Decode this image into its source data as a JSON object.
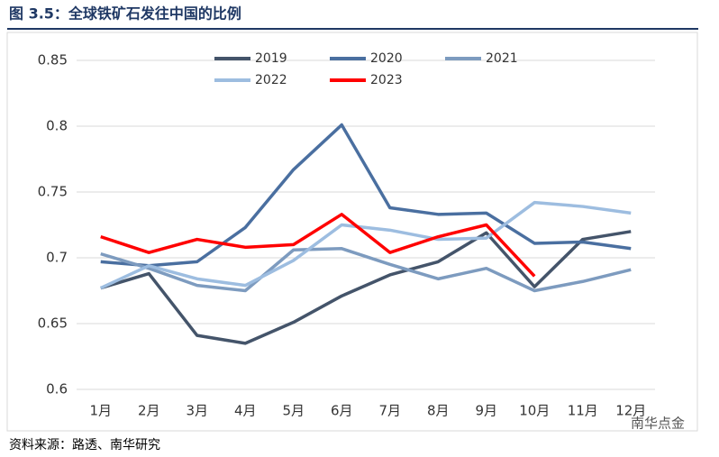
{
  "title": "图 3.5：全球铁矿石发往中国的比例",
  "source": "资料来源：路透、南华研究",
  "watermark": "南华点金",
  "chart_data": {
    "type": "line",
    "categories": [
      "1月",
      "2月",
      "3月",
      "4月",
      "5月",
      "6月",
      "7月",
      "8月",
      "9月",
      "10月",
      "11月",
      "12月"
    ],
    "series": [
      {
        "name": "2019",
        "color": "#44546a",
        "values": [
          0.677,
          0.688,
          0.641,
          0.635,
          0.651,
          0.671,
          0.687,
          0.697,
          0.719,
          0.678,
          0.714,
          0.72
        ]
      },
      {
        "name": "2020",
        "color": "#4a6fa0",
        "values": [
          0.697,
          0.694,
          0.697,
          0.723,
          0.767,
          0.801,
          0.738,
          0.733,
          0.734,
          0.711,
          0.712,
          0.707
        ]
      },
      {
        "name": "2021",
        "color": "#7d9bbf",
        "values": [
          0.703,
          0.692,
          0.679,
          0.675,
          0.706,
          0.707,
          0.695,
          0.684,
          0.692,
          0.675,
          0.682,
          0.691
        ]
      },
      {
        "name": "2022",
        "color": "#9dbde0",
        "values": [
          0.677,
          0.694,
          0.684,
          0.679,
          0.698,
          0.725,
          0.721,
          0.714,
          0.715,
          0.742,
          0.739,
          0.734
        ]
      },
      {
        "name": "2023",
        "color": "#ff0000",
        "values": [
          0.716,
          0.704,
          0.714,
          0.708,
          0.71,
          0.733,
          0.704,
          0.716,
          0.725,
          0.686,
          null,
          null
        ]
      }
    ],
    "ylim": [
      0.6,
      0.85
    ],
    "yticks": [
      0.6,
      0.65,
      0.7,
      0.75,
      0.8,
      0.85
    ],
    "grid": true
  }
}
